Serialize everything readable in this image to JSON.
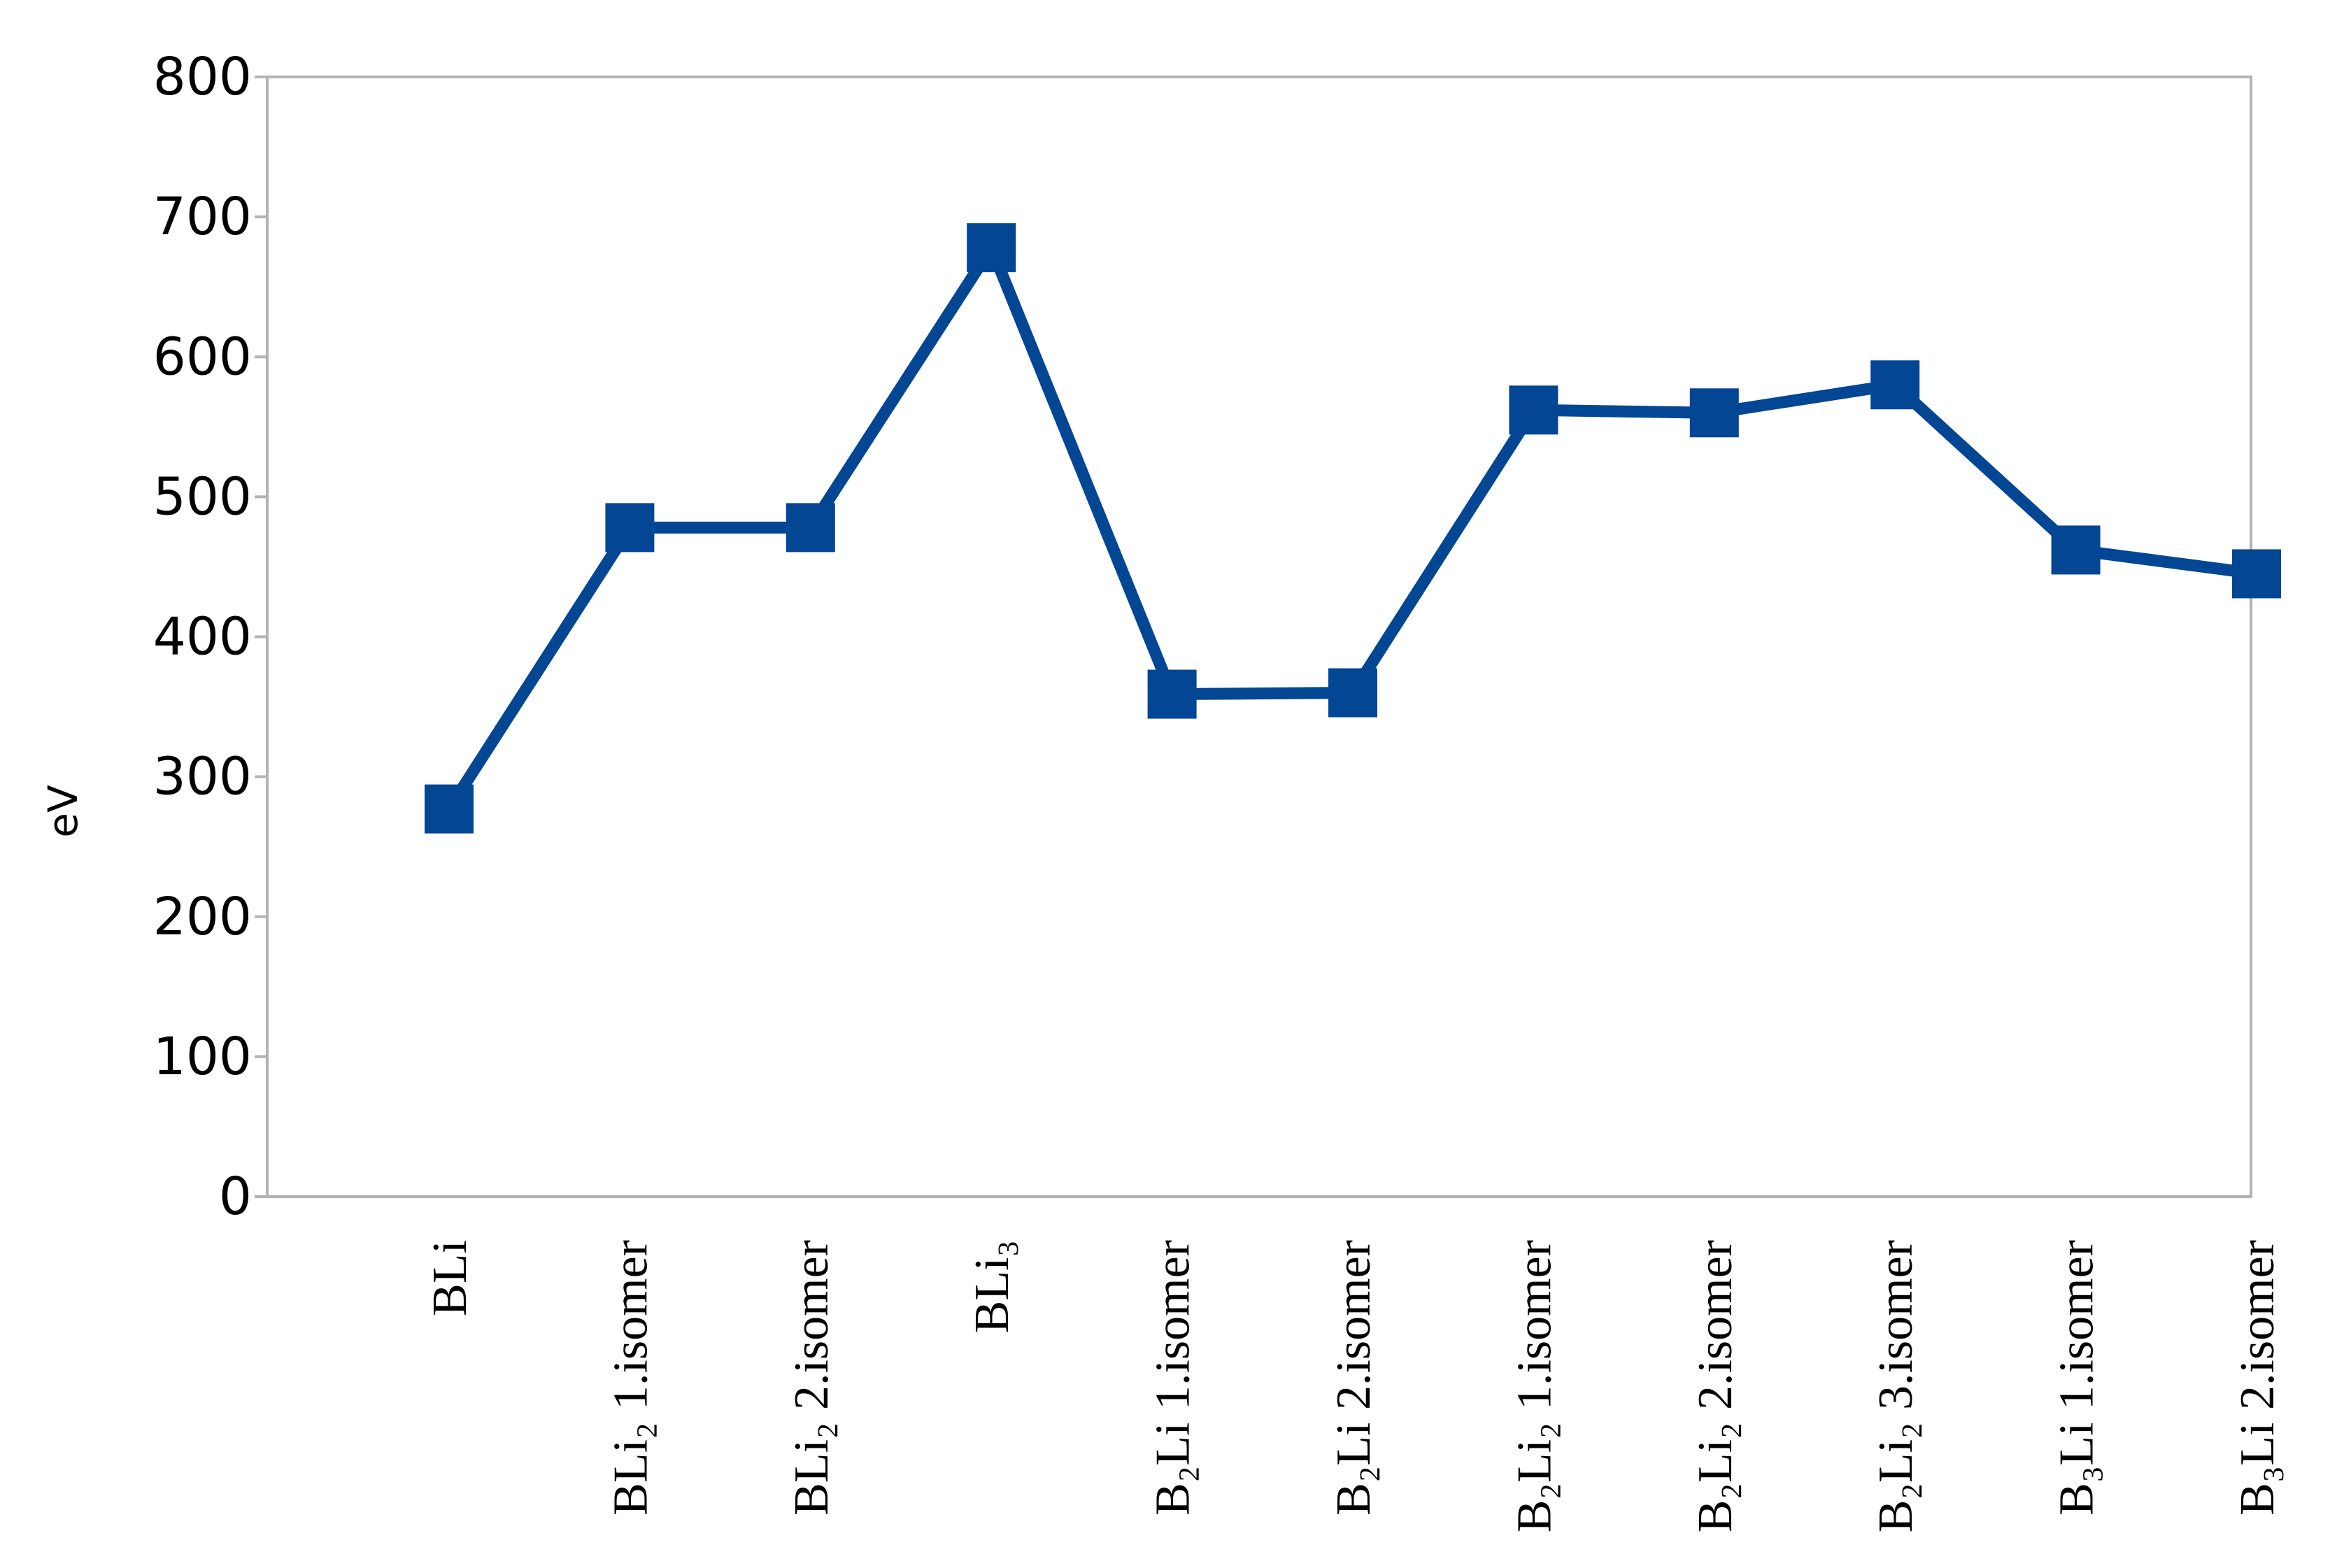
{
  "chart_data": {
    "type": "line",
    "ylabel": "eV",
    "xlabel": "",
    "ylim": [
      0,
      800
    ],
    "yticks": [
      0,
      100,
      200,
      300,
      400,
      500,
      600,
      700,
      800
    ],
    "grid": false,
    "legend": "none",
    "categories": [
      "BLi",
      "BLi₂ 1.isomer",
      "BLi₂ 2.isomer",
      "BLi₃",
      "B₂Li 1.isomer",
      "B₂Li 2.isomer",
      "B₂Li₂ 1.isomer",
      "B₂Li₂ 2.isomer",
      "B₂Li₂ 3.isomer",
      "B₃Li 1.isomer",
      "B₃Li 2.isomer"
    ],
    "series": [
      {
        "values": [
          277,
          478,
          478,
          678,
          359,
          360,
          562,
          560,
          580,
          462,
          445
        ],
        "color": "#034693",
        "marker": "square"
      }
    ]
  },
  "colors": {
    "series": "#034693",
    "frame": "#b3b3b3",
    "axis": "#b3b3b3"
  }
}
